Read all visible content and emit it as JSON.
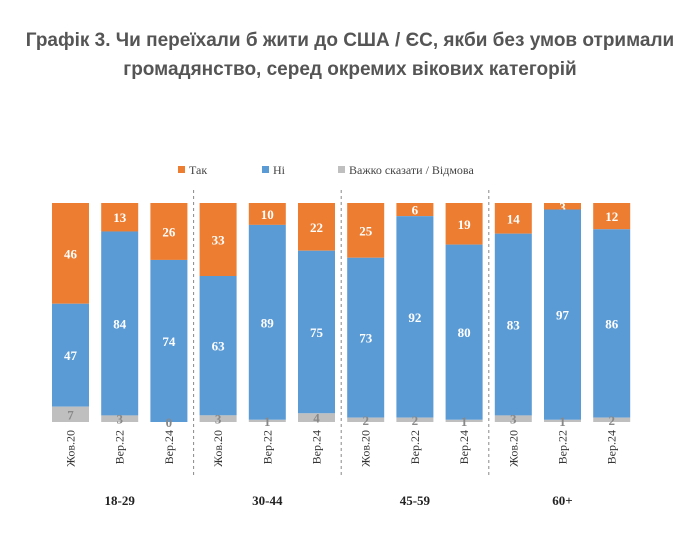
{
  "chart_data": {
    "type": "bar",
    "stacked": true,
    "title": "Графік 3. Чи переїхали б жити до США / ЄС, якби без умов отримали громадянство, серед окремих вікових категорій",
    "legend_position": "top",
    "categories": [
      "Жов.20",
      "Вер.22",
      "Вер.24",
      "Жов.20",
      "Вер.22",
      "Вер.24",
      "Жов.20",
      "Вер.22",
      "Вер.24",
      "Жов.20",
      "Вер.22",
      "Вер.24"
    ],
    "groups": [
      {
        "label": "18-29",
        "size": 3
      },
      {
        "label": "30-44",
        "size": 3
      },
      {
        "label": "45-59",
        "size": 3
      },
      {
        "label": "60+",
        "size": 3
      }
    ],
    "series": [
      {
        "name": "Так",
        "color": "#ED7D31",
        "values": [
          46,
          13,
          26,
          33,
          10,
          22,
          25,
          6,
          19,
          14,
          3,
          12
        ]
      },
      {
        "name": "Ні",
        "color": "#5B9BD5",
        "values": [
          47,
          84,
          74,
          63,
          89,
          75,
          73,
          92,
          80,
          83,
          97,
          86
        ]
      },
      {
        "name": "Важко сказати / Відмова",
        "color": "#BFBFBF",
        "values": [
          7,
          3,
          0,
          3,
          1,
          4,
          2,
          2,
          1,
          3,
          1,
          2
        ]
      }
    ],
    "ylim": [
      0,
      100
    ],
    "grid": false
  }
}
